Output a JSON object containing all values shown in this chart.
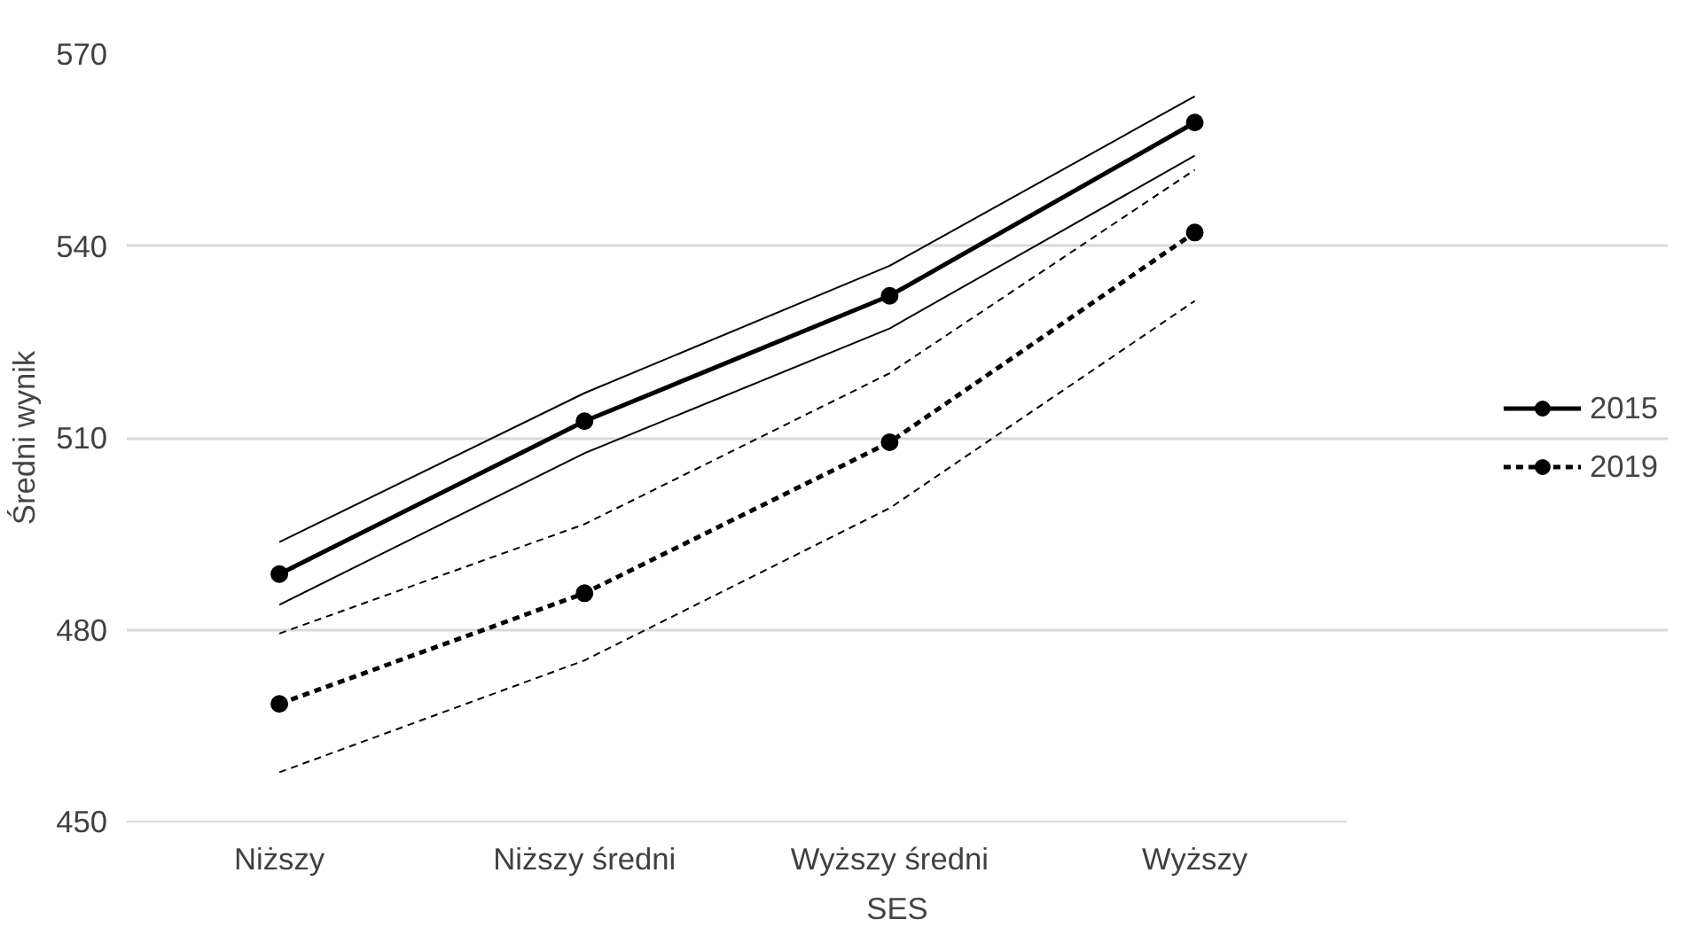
{
  "chart_data": {
    "type": "line",
    "xlabel": "SES",
    "ylabel": "Średni wynik",
    "categories": [
      "Niższy",
      "Niższy średni",
      "Wyższy średni",
      "Wyższy"
    ],
    "series": [
      {
        "name": "2015",
        "color": "#000000",
        "line_style": "solid",
        "values": [
          488.7,
          512.6,
          532.2,
          559.3
        ]
      },
      {
        "color": "#000000",
        "line_style": "solid",
        "marker": "none",
        "values": [
          493.7,
          517.0,
          536.9,
          563.4
        ]
      },
      {
        "color": "#000000",
        "line_style": "solid",
        "marker": "none",
        "values": [
          483.9,
          507.6,
          527.1,
          554.1
        ]
      },
      {
        "name": "2019",
        "color": "#000000",
        "line_style": "dashed",
        "values": [
          468.4,
          485.7,
          509.3,
          542.1
        ]
      },
      {
        "color": "#000000",
        "line_style": "dashed",
        "marker": "none",
        "values": [
          479.4,
          496.5,
          520.1,
          551.9
        ]
      },
      {
        "color": "#000000",
        "line_style": "dashed",
        "marker": "none",
        "values": [
          457.7,
          475.2,
          499.0,
          531.4
        ]
      }
    ],
    "ylim": [
      450,
      570
    ],
    "yticks": [
      450,
      480,
      510,
      540,
      570
    ],
    "grid": "y",
    "legend": "right",
    "marker": "circle"
  }
}
